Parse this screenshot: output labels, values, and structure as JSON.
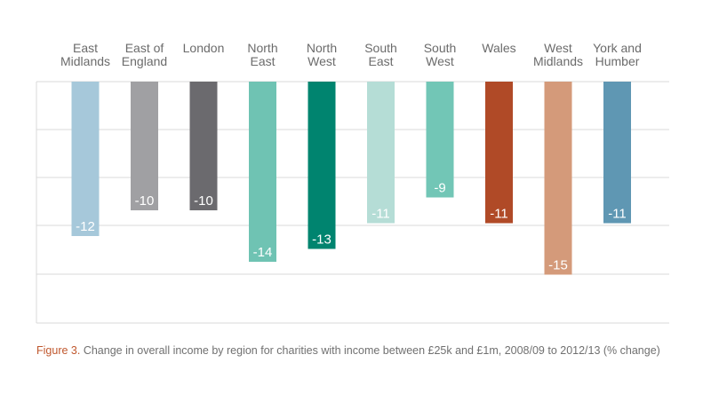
{
  "chart_data": {
    "type": "bar",
    "categories": [
      [
        "East",
        "Midlands"
      ],
      [
        "East of",
        "England"
      ],
      [
        "London"
      ],
      [
        "North",
        "East"
      ],
      [
        "North",
        "West"
      ],
      [
        "South",
        "East"
      ],
      [
        "South",
        "West"
      ],
      [
        "Wales"
      ],
      [
        "West",
        "Midlands"
      ],
      [
        "York and",
        "Humber"
      ]
    ],
    "values": [
      -12,
      -10,
      -10,
      -14,
      -13,
      -11,
      -9,
      -11,
      -15,
      -11
    ],
    "value_labels": [
      "-12",
      "-10",
      "-10",
      "-14",
      "-13",
      "-11",
      "-9",
      "-11",
      "-15",
      "-11"
    ],
    "colors": [
      "#a6c8da",
      "#a0a0a3",
      "#6b6a6e",
      "#6fc3b3",
      "#00846f",
      "#b5ddd6",
      "#72c6b6",
      "#b04a27",
      "#d49a7a",
      "#5f97b3"
    ],
    "ylim": [
      -15,
      0
    ],
    "grid": true,
    "xlabel": "",
    "ylabel": ""
  },
  "caption": {
    "figure_label": "Figure 3.",
    "text": " Change in overall income by region for charities with income between £25k and £1m, 2008/09 to 2012/13 (% change)"
  }
}
